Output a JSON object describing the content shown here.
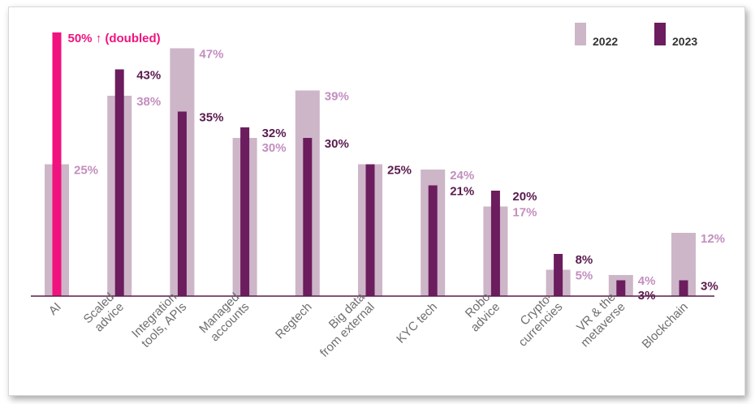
{
  "chart_data": {
    "type": "bar",
    "title": "",
    "xlabel": "",
    "ylabel": "",
    "ylim": [
      0,
      50
    ],
    "grid": false,
    "legend": "top-right",
    "categories": [
      [
        "AI"
      ],
      [
        "Scaled",
        "advice"
      ],
      [
        "Integration",
        "tools, APIs"
      ],
      [
        "Managed",
        "accounts"
      ],
      [
        "Regtech"
      ],
      [
        "Big data",
        "from external"
      ],
      [
        "KYC tech"
      ],
      [
        "Robo",
        "advice"
      ],
      [
        "Crypto-",
        "currencies"
      ],
      [
        "VR & the",
        "metaverse"
      ],
      [
        "Blockchain"
      ]
    ],
    "series": [
      {
        "name": "2022",
        "color": "#cdb6c8",
        "label_color": "#c48ebf",
        "values": [
          25,
          38,
          47,
          30,
          39,
          25,
          24,
          17,
          5,
          4,
          12
        ],
        "labels": [
          "25%",
          "38%",
          "47%",
          "30%",
          "39%",
          "",
          "24%",
          "17%",
          "5%",
          "4%",
          "12%"
        ]
      },
      {
        "name": "2023",
        "color": "#6b1d5e",
        "label_color": "#5a1a4e",
        "values": [
          50,
          43,
          35,
          32,
          30,
          25,
          21,
          20,
          8,
          3,
          3
        ],
        "labels": [
          "50% ↑ (doubled)",
          "43%",
          "35%",
          "32%",
          "30%",
          "25%",
          "21%",
          "20%",
          "8%",
          "3%",
          "3%"
        ]
      }
    ],
    "highlight": {
      "index": 0,
      "series": 1,
      "color": "#f0127f"
    }
  }
}
